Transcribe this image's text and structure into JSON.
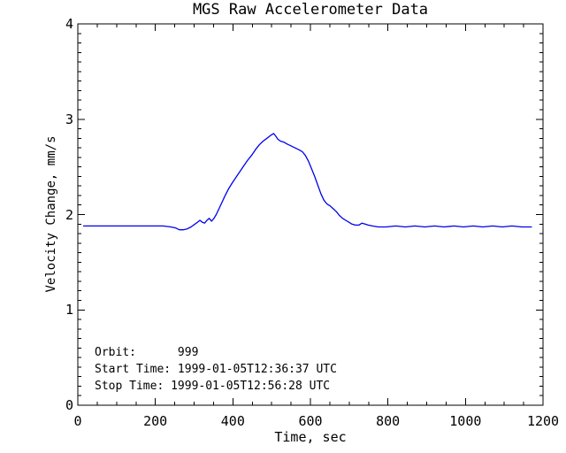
{
  "window": {
    "background": "#ffffff",
    "text_color": "#000000"
  },
  "chart_data": {
    "type": "line",
    "title": "MGS Raw Accelerometer Data",
    "xlabel": "Time, sec",
    "ylabel": "Velocity Change, mm/s",
    "xlim": [
      0,
      1200
    ],
    "ylim": [
      0,
      4
    ],
    "x_major_ticks": [
      0,
      200,
      400,
      600,
      800,
      1000,
      1200
    ],
    "x_minor_interval": 50,
    "y_major_ticks": [
      0,
      1,
      2,
      3,
      4
    ],
    "y_minor_interval": 0.1,
    "grid": "off",
    "legend": "none",
    "line_color": "#0000ee",
    "axis_color": "#000000",
    "annotations": [
      "Orbit:      999",
      "Start Time: 1999-01-05T12:36:37 UTC",
      "Stop Time: 1999-01-05T12:56:28 UTC"
    ],
    "series": [
      {
        "name": "velocity-change",
        "points": [
          [
            15,
            1.88
          ],
          [
            45,
            1.88
          ],
          [
            75,
            1.88
          ],
          [
            105,
            1.88
          ],
          [
            135,
            1.88
          ],
          [
            165,
            1.88
          ],
          [
            195,
            1.88
          ],
          [
            220,
            1.88
          ],
          [
            240,
            1.87
          ],
          [
            252,
            1.86
          ],
          [
            262,
            1.84
          ],
          [
            272,
            1.84
          ],
          [
            282,
            1.85
          ],
          [
            292,
            1.87
          ],
          [
            302,
            1.9
          ],
          [
            309,
            1.92
          ],
          [
            315,
            1.94
          ],
          [
            321,
            1.92
          ],
          [
            327,
            1.91
          ],
          [
            333,
            1.94
          ],
          [
            339,
            1.96
          ],
          [
            345,
            1.93
          ],
          [
            351,
            1.96
          ],
          [
            357,
            2.0
          ],
          [
            364,
            2.06
          ],
          [
            372,
            2.13
          ],
          [
            380,
            2.2
          ],
          [
            389,
            2.27
          ],
          [
            398,
            2.33
          ],
          [
            408,
            2.39
          ],
          [
            418,
            2.45
          ],
          [
            428,
            2.51
          ],
          [
            438,
            2.57
          ],
          [
            448,
            2.62
          ],
          [
            458,
            2.68
          ],
          [
            468,
            2.73
          ],
          [
            478,
            2.77
          ],
          [
            488,
            2.8
          ],
          [
            497,
            2.83
          ],
          [
            505,
            2.85
          ],
          [
            511,
            2.82
          ],
          [
            516,
            2.79
          ],
          [
            523,
            2.77
          ],
          [
            531,
            2.76
          ],
          [
            540,
            2.74
          ],
          [
            550,
            2.72
          ],
          [
            560,
            2.7
          ],
          [
            570,
            2.68
          ],
          [
            579,
            2.66
          ],
          [
            587,
            2.62
          ],
          [
            595,
            2.56
          ],
          [
            603,
            2.48
          ],
          [
            611,
            2.4
          ],
          [
            619,
            2.31
          ],
          [
            627,
            2.22
          ],
          [
            635,
            2.15
          ],
          [
            643,
            2.11
          ],
          [
            651,
            2.09
          ],
          [
            659,
            2.06
          ],
          [
            667,
            2.03
          ],
          [
            675,
            1.99
          ],
          [
            683,
            1.96
          ],
          [
            691,
            1.94
          ],
          [
            699,
            1.92
          ],
          [
            707,
            1.9
          ],
          [
            716,
            1.89
          ],
          [
            725,
            1.89
          ],
          [
            733,
            1.91
          ],
          [
            741,
            1.9
          ],
          [
            749,
            1.89
          ],
          [
            760,
            1.88
          ],
          [
            775,
            1.87
          ],
          [
            795,
            1.87
          ],
          [
            820,
            1.88
          ],
          [
            845,
            1.87
          ],
          [
            870,
            1.88
          ],
          [
            895,
            1.87
          ],
          [
            920,
            1.88
          ],
          [
            945,
            1.87
          ],
          [
            970,
            1.88
          ],
          [
            995,
            1.87
          ],
          [
            1020,
            1.88
          ],
          [
            1045,
            1.87
          ],
          [
            1070,
            1.88
          ],
          [
            1095,
            1.87
          ],
          [
            1120,
            1.88
          ],
          [
            1145,
            1.87
          ],
          [
            1170,
            1.87
          ]
        ]
      }
    ]
  }
}
